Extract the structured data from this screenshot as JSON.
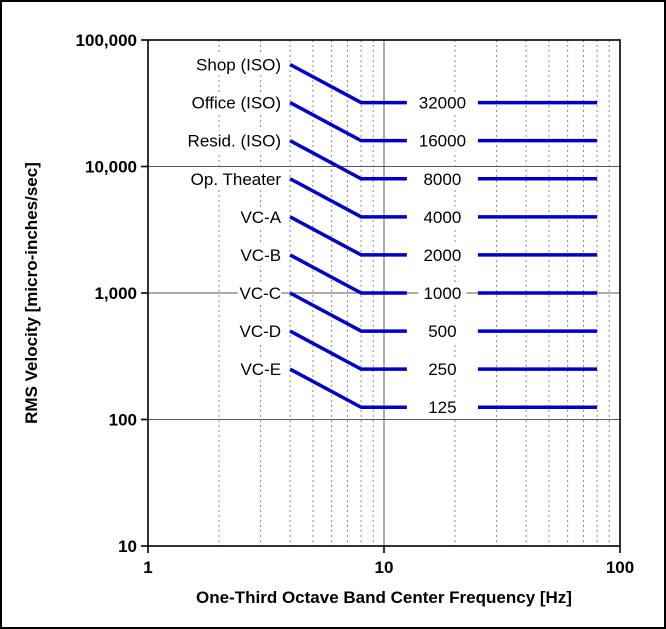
{
  "chart_data": {
    "type": "line",
    "title": "",
    "xlabel": "One-Third Octave Band Center Frequency [Hz]",
    "ylabel": "RMS Velocity [micro-inches/sec]",
    "x_scale": "log",
    "y_scale": "log",
    "xlim": [
      1,
      100
    ],
    "ylim": [
      10,
      100000
    ],
    "x_ticks": [
      "1",
      "10",
      "100"
    ],
    "x_tick_values": [
      1,
      10,
      100
    ],
    "y_ticks": [
      "10",
      "100",
      "1,000",
      "10,000",
      "100,000"
    ],
    "y_tick_values": [
      10,
      100,
      1000,
      10000,
      100000
    ],
    "grid": {
      "x_minor": [
        2,
        3,
        4,
        5,
        6,
        7,
        8,
        9,
        20,
        30,
        40,
        50,
        60,
        70,
        80,
        90
      ],
      "x_major": [
        10
      ],
      "y_major": [
        100,
        1000,
        10000
      ]
    },
    "legend_position": "none",
    "line_color": "#0000CC",
    "series": [
      {
        "name": "Shop (ISO)",
        "value_label": "32000",
        "x": [
          4,
          8,
          80
        ],
        "y": [
          64000,
          32000,
          32000
        ]
      },
      {
        "name": "Office (ISO)",
        "value_label": "16000",
        "x": [
          4,
          8,
          80
        ],
        "y": [
          32000,
          16000,
          16000
        ]
      },
      {
        "name": "Resid. (ISO)",
        "value_label": "8000",
        "x": [
          4,
          8,
          80
        ],
        "y": [
          16000,
          8000,
          8000
        ]
      },
      {
        "name": "Op. Theater",
        "value_label": "4000",
        "x": [
          4,
          8,
          80
        ],
        "y": [
          8000,
          4000,
          4000
        ]
      },
      {
        "name": "VC-A",
        "value_label": "2000",
        "x": [
          4,
          8,
          80
        ],
        "y": [
          4000,
          2000,
          2000
        ]
      },
      {
        "name": "VC-B",
        "value_label": "1000",
        "x": [
          4,
          8,
          80
        ],
        "y": [
          2000,
          1000,
          1000
        ]
      },
      {
        "name": "VC-C",
        "value_label": "500",
        "x": [
          4,
          8,
          80
        ],
        "y": [
          1000,
          500,
          500
        ]
      },
      {
        "name": "VC-D",
        "value_label": "250",
        "x": [
          4,
          8,
          80
        ],
        "y": [
          500,
          250,
          250
        ]
      },
      {
        "name": "VC-E",
        "value_label": "125",
        "x": [
          4,
          8,
          80
        ],
        "y": [
          250,
          125,
          125
        ]
      }
    ]
  }
}
